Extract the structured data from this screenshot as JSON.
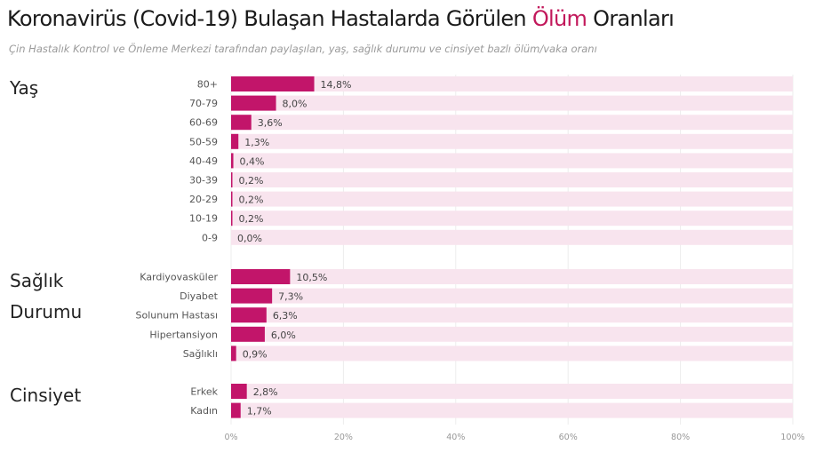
{
  "title_prefix": "Koronavirüs (Covid-19) Bulaşan Hastalarda Görülen ",
  "title_highlight": "Ölüm",
  "title_suffix": " Oranları",
  "subtitle": "Çin Hastalık Kontrol ve Önleme Merkezi tarafından paylaşılan, yaş, sağlık durumu ve cinsiyet bazlı ölüm/vaka oranı",
  "colors": {
    "bar": "#c2156a",
    "track": "#f8e4ee",
    "highlight": "#c2185b"
  },
  "chart_data": {
    "type": "bar",
    "orientation": "horizontal",
    "xlim": [
      0,
      100
    ],
    "xticks": [
      "0%",
      "20%",
      "40%",
      "60%",
      "80%",
      "100%"
    ],
    "xtick_values": [
      0,
      20,
      40,
      60,
      80,
      100
    ],
    "grid": true,
    "groups": [
      {
        "title_lines": [
          "Yaş"
        ],
        "categories": [
          "80+",
          "70-79",
          "60-69",
          "50-59",
          "40-49",
          "30-39",
          "20-29",
          "10-19",
          "0-9"
        ],
        "values": [
          14.8,
          8.0,
          3.6,
          1.3,
          0.4,
          0.2,
          0.2,
          0.2,
          0.0
        ],
        "labels": [
          "14,8%",
          "8,0%",
          "3,6%",
          "1,3%",
          "0,4%",
          "0,2%",
          "0,2%",
          "0,2%",
          "0,0%"
        ]
      },
      {
        "title_lines": [
          "Sağlık",
          "Durumu"
        ],
        "categories": [
          "Kardiyovasküler",
          "Diyabet",
          "Solunum Hastası",
          "Hipertansiyon",
          "Sağlıklı"
        ],
        "values": [
          10.5,
          7.3,
          6.3,
          6.0,
          0.9
        ],
        "labels": [
          "10,5%",
          "7,3%",
          "6,3%",
          "6,0%",
          "0,9%"
        ]
      },
      {
        "title_lines": [
          "Cinsiyet"
        ],
        "categories": [
          "Erkek",
          "Kadın"
        ],
        "values": [
          2.8,
          1.7
        ],
        "labels": [
          "2,8%",
          "1,7%"
        ]
      }
    ]
  }
}
